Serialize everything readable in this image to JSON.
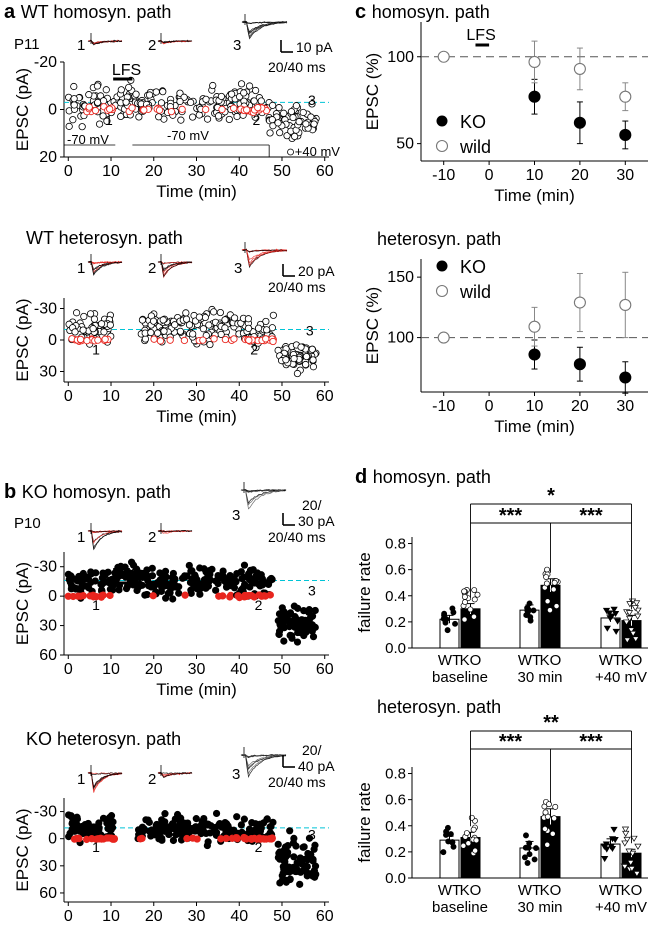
{
  "panel_labels": {
    "a": "a",
    "b": "b",
    "c": "c",
    "d": "d"
  },
  "trace_numbers": [
    "1",
    "2",
    "3"
  ],
  "legend": {
    "ko": "KO",
    "wild": "wild"
  },
  "annotations": {
    "p11": "P11",
    "p10": "P10",
    "lfs": "LFS",
    "hold_neg70": "-70 mV",
    "hold_pos40": "+40 mV",
    "sb_a1_y": "10 pA",
    "sb_a1_x": "20/40 ms",
    "sb_a2_y": "20 pA",
    "sb_a2_x": "20/40 ms",
    "sb_b1_y1": "20/",
    "sb_b1_y2": "30 pA",
    "sb_b1_x": "20/40 ms",
    "sb_b2_y1": "20/",
    "sb_b2_y2": "40 pA",
    "sb_b2_x": "20/40 ms"
  },
  "colors": {
    "red": "#e8251e",
    "cyan": "#00c4d6",
    "black": "#000000",
    "gray": "#777777"
  },
  "chart_data": [
    {
      "id": "a1",
      "type": "scatter",
      "title": "WT homosyn. path",
      "xlabel": "Time (min)",
      "ylabel": "EPSC (pA)",
      "xlim": [
        -1,
        61
      ],
      "ylim": [
        -20,
        20
      ],
      "inverted_y": true,
      "xticks": [
        0,
        10,
        20,
        30,
        40,
        50,
        60
      ],
      "xtick_labels": [
        "0",
        "10",
        "20",
        "30",
        "40",
        "50",
        "60"
      ],
      "yticks": [
        -20,
        0,
        20
      ],
      "ytick_labels": [
        "-20",
        "0",
        "20"
      ],
      "cyan_line_y": -3,
      "segments": [
        {
          "x": [
            0,
            12
          ],
          "center": -2,
          "spread": 5,
          "fail_count": 12,
          "n": 55
        },
        {
          "x": [
            12,
            16
          ],
          "center": -2,
          "spread": 6,
          "fail_count": 2,
          "n": 28,
          "label_pos": "below"
        },
        {
          "x": [
            16,
            38
          ],
          "center": -2,
          "spread": 4.5,
          "fail_count": 10,
          "n": 95
        },
        {
          "x": [
            38,
            47
          ],
          "center": -3,
          "spread": 5,
          "fail_count": 18,
          "n": 50
        },
        {
          "x": [
            47,
            58
          ],
          "center": 5,
          "spread": 5,
          "fail_count": 0,
          "n": 65
        }
      ],
      "trace_labels": [
        {
          "x": 9.5,
          "y": 4,
          "t": "1"
        },
        {
          "x": 44,
          "y": 4,
          "t": "2"
        },
        {
          "x": 57,
          "y": -4.5,
          "t": "3"
        }
      ]
    },
    {
      "id": "a2",
      "type": "scatter",
      "title": "WT heterosyn. path",
      "xlabel": "Time (min)",
      "ylabel": "EPSC (pA)",
      "xlim": [
        -1,
        61
      ],
      "ylim": [
        -40,
        40
      ],
      "inverted_y": true,
      "xticks": [
        0,
        10,
        20,
        30,
        40,
        50,
        60
      ],
      "xtick_labels": [
        "0",
        "10",
        "20",
        "30",
        "40",
        "50",
        "60"
      ],
      "yticks": [
        -30,
        0,
        30
      ],
      "ytick_labels": [
        "-30",
        "0",
        "30"
      ],
      "cyan_line_y": -10,
      "segments": [
        {
          "x": [
            0,
            10
          ],
          "center": -12,
          "spread": 10,
          "fail_count": 18,
          "n": 55
        },
        {
          "x": [
            17,
            40
          ],
          "center": -12,
          "spread": 10,
          "fail_count": 10,
          "n": 130
        },
        {
          "x": [
            40,
            48
          ],
          "center": -8,
          "spread": 9,
          "fail_count": 15,
          "n": 40
        },
        {
          "x": [
            49,
            58
          ],
          "center": 15,
          "spread": 9,
          "fail_count": 0,
          "n": 70
        }
      ],
      "trace_labels": [
        {
          "x": 6.5,
          "y": 8,
          "t": "1"
        },
        {
          "x": 43.5,
          "y": 8,
          "t": "2"
        },
        {
          "x": 56.5,
          "y": -10,
          "t": "3"
        }
      ]
    },
    {
      "id": "b1",
      "type": "scatter",
      "title": "KO homosyn. path",
      "xlabel": "Time (min)",
      "ylabel": "EPSC (pA)",
      "xlim": [
        -1,
        61
      ],
      "ylim": [
        -45,
        60
      ],
      "inverted_y": true,
      "xticks": [
        0,
        10,
        20,
        30,
        40,
        50,
        60
      ],
      "xtick_labels": [
        "0",
        "10",
        "20",
        "30",
        "40",
        "50",
        "60"
      ],
      "yticks": [
        -30,
        0,
        30,
        60
      ],
      "ytick_labels": [
        "-30",
        "0",
        "30",
        "60"
      ],
      "cyan_line_y": -16,
      "segments": [
        {
          "x": [
            0,
            11
          ],
          "center": -15,
          "spread": 10,
          "fail_count": 14,
          "n": 55
        },
        {
          "x": [
            11,
            16
          ],
          "center": -18,
          "spread": 10,
          "fail_count": 0,
          "n": 40
        },
        {
          "x": [
            16,
            39
          ],
          "center": -15,
          "spread": 10,
          "fail_count": 6,
          "n": 120
        },
        {
          "x": [
            39,
            48
          ],
          "center": -15,
          "spread": 11,
          "fail_count": 18,
          "n": 45
        },
        {
          "x": [
            49,
            58
          ],
          "center": 28,
          "spread": 12,
          "fail_count": 0,
          "n": 70
        }
      ],
      "trace_labels": [
        {
          "x": 6.5,
          "y": 8,
          "t": "1"
        },
        {
          "x": 44.5,
          "y": 8,
          "t": "2"
        },
        {
          "x": 57,
          "y": -7,
          "t": "3"
        }
      ]
    },
    {
      "id": "b2",
      "type": "scatter",
      "title": "KO heterosyn. path",
      "xlabel": "Time (min)",
      "ylabel": "EPSC (pA)",
      "xlim": [
        -1,
        61
      ],
      "ylim": [
        -45,
        70
      ],
      "inverted_y": true,
      "xticks": [
        0,
        10,
        20,
        30,
        40,
        50,
        60
      ],
      "xtick_labels": [
        "0",
        "10",
        "20",
        "30",
        "40",
        "50",
        "60"
      ],
      "yticks": [
        -30,
        0,
        30,
        60
      ],
      "ytick_labels": [
        "-30",
        "0",
        "30",
        "60"
      ],
      "cyan_line_y": -12,
      "segments": [
        {
          "x": [
            0,
            11
          ],
          "center": -10,
          "spread": 10,
          "fail_count": 20,
          "n": 60
        },
        {
          "x": [
            16,
            39
          ],
          "center": -10,
          "spread": 10,
          "fail_count": 8,
          "n": 130
        },
        {
          "x": [
            39,
            48
          ],
          "center": -8,
          "spread": 9,
          "fail_count": 22,
          "n": 45
        },
        {
          "x": [
            49,
            58
          ],
          "center": 25,
          "spread": 20,
          "fail_count": 0,
          "n": 75
        }
      ],
      "trace_labels": [
        {
          "x": 6.5,
          "y": 8,
          "t": "1"
        },
        {
          "x": 44.5,
          "y": 8,
          "t": "2"
        },
        {
          "x": 57,
          "y": -6,
          "t": "3"
        }
      ]
    },
    {
      "id": "c1",
      "type": "scatter",
      "title": "homosyn. path",
      "xlabel": "Time (min)",
      "ylabel": "EPSC (%)",
      "xlim": [
        -15,
        35
      ],
      "ylim": [
        40,
        120
      ],
      "xticks": [
        -10,
        0,
        10,
        20,
        30
      ],
      "xtick_labels": [
        "-10",
        "0",
        "10",
        "20",
        "30"
      ],
      "yticks": [
        50,
        100
      ],
      "ytick_labels": [
        "50",
        "100"
      ],
      "ref_line": 100,
      "series": [
        {
          "name": "KO",
          "filled": true,
          "x": [
            10,
            20,
            30
          ],
          "y": [
            77,
            62,
            55
          ],
          "err": [
            10,
            12,
            8
          ]
        },
        {
          "name": "wild",
          "filled": false,
          "x": [
            -10,
            10,
            20,
            30
          ],
          "y": [
            100,
            97,
            93,
            77
          ],
          "err": [
            0,
            12,
            12,
            8
          ]
        }
      ]
    },
    {
      "id": "c2",
      "type": "scatter",
      "title": "heterosyn. path",
      "xlabel": "Time (min)",
      "ylabel": "EPSC (%)",
      "xlim": [
        -15,
        35
      ],
      "ylim": [
        55,
        165
      ],
      "xticks": [
        -10,
        0,
        10,
        20,
        30
      ],
      "xtick_labels": [
        "-10",
        "0",
        "10",
        "20",
        "30"
      ],
      "yticks": [
        100,
        150
      ],
      "ytick_labels": [
        "100",
        "150"
      ],
      "ref_line": 100,
      "series": [
        {
          "name": "KO",
          "filled": true,
          "x": [
            10,
            20,
            30
          ],
          "y": [
            86,
            78,
            67
          ],
          "err": [
            12,
            14,
            13
          ]
        },
        {
          "name": "wild",
          "filled": false,
          "x": [
            -10,
            10,
            20,
            30
          ],
          "y": [
            100,
            109,
            129,
            127
          ],
          "err": [
            0,
            16,
            24,
            27
          ]
        }
      ]
    },
    {
      "id": "d1",
      "type": "bar",
      "title": "homosyn. path",
      "ylabel": "failure rate",
      "ylim": [
        0,
        0.85
      ],
      "yticks": [
        0,
        0.2,
        0.4,
        0.6,
        0.8
      ],
      "ytick_labels": [
        "0.0",
        "0.2",
        "0.4",
        "0.6",
        "0.8"
      ],
      "groups": [
        "baseline",
        "30 min",
        "+40 mV"
      ],
      "series": [
        {
          "name": "WT",
          "values": [
            0.22,
            0.29,
            0.23
          ],
          "err": [
            0.03,
            0.04,
            0.03
          ]
        },
        {
          "name": "KO",
          "values": [
            0.3,
            0.48,
            0.21
          ],
          "err": [
            0.04,
            0.05,
            0.04
          ]
        }
      ],
      "significance": [
        {
          "from": "KO-baseline",
          "to": "KO-30 min",
          "label": "***"
        },
        {
          "from": "KO-30 min",
          "to": "KO-+40 mV",
          "label": "***"
        },
        {
          "from": "KO-baseline",
          "to": "KO-+40 mV",
          "label": "*"
        }
      ]
    },
    {
      "id": "d2",
      "type": "bar",
      "title": "heterosyn. path",
      "ylabel": "failure rate",
      "ylim": [
        0,
        0.85
      ],
      "yticks": [
        0,
        0.2,
        0.4,
        0.6,
        0.8
      ],
      "ytick_labels": [
        "0.0",
        "0.2",
        "0.4",
        "0.6",
        "0.8"
      ],
      "groups": [
        "baseline",
        "30 min",
        "+40 mV"
      ],
      "series": [
        {
          "name": "WT",
          "values": [
            0.29,
            0.23,
            0.26
          ],
          "err": [
            0.03,
            0.05,
            0.04
          ]
        },
        {
          "name": "KO",
          "values": [
            0.31,
            0.47,
            0.19
          ],
          "err": [
            0.04,
            0.06,
            0.03
          ]
        }
      ],
      "significance": [
        {
          "from": "KO-baseline",
          "to": "KO-30 min",
          "label": "***"
        },
        {
          "from": "KO-30 min",
          "to": "KO-+40 mV",
          "label": "***"
        },
        {
          "from": "KO-baseline",
          "to": "KO-+40 mV",
          "label": "**"
        }
      ]
    }
  ]
}
